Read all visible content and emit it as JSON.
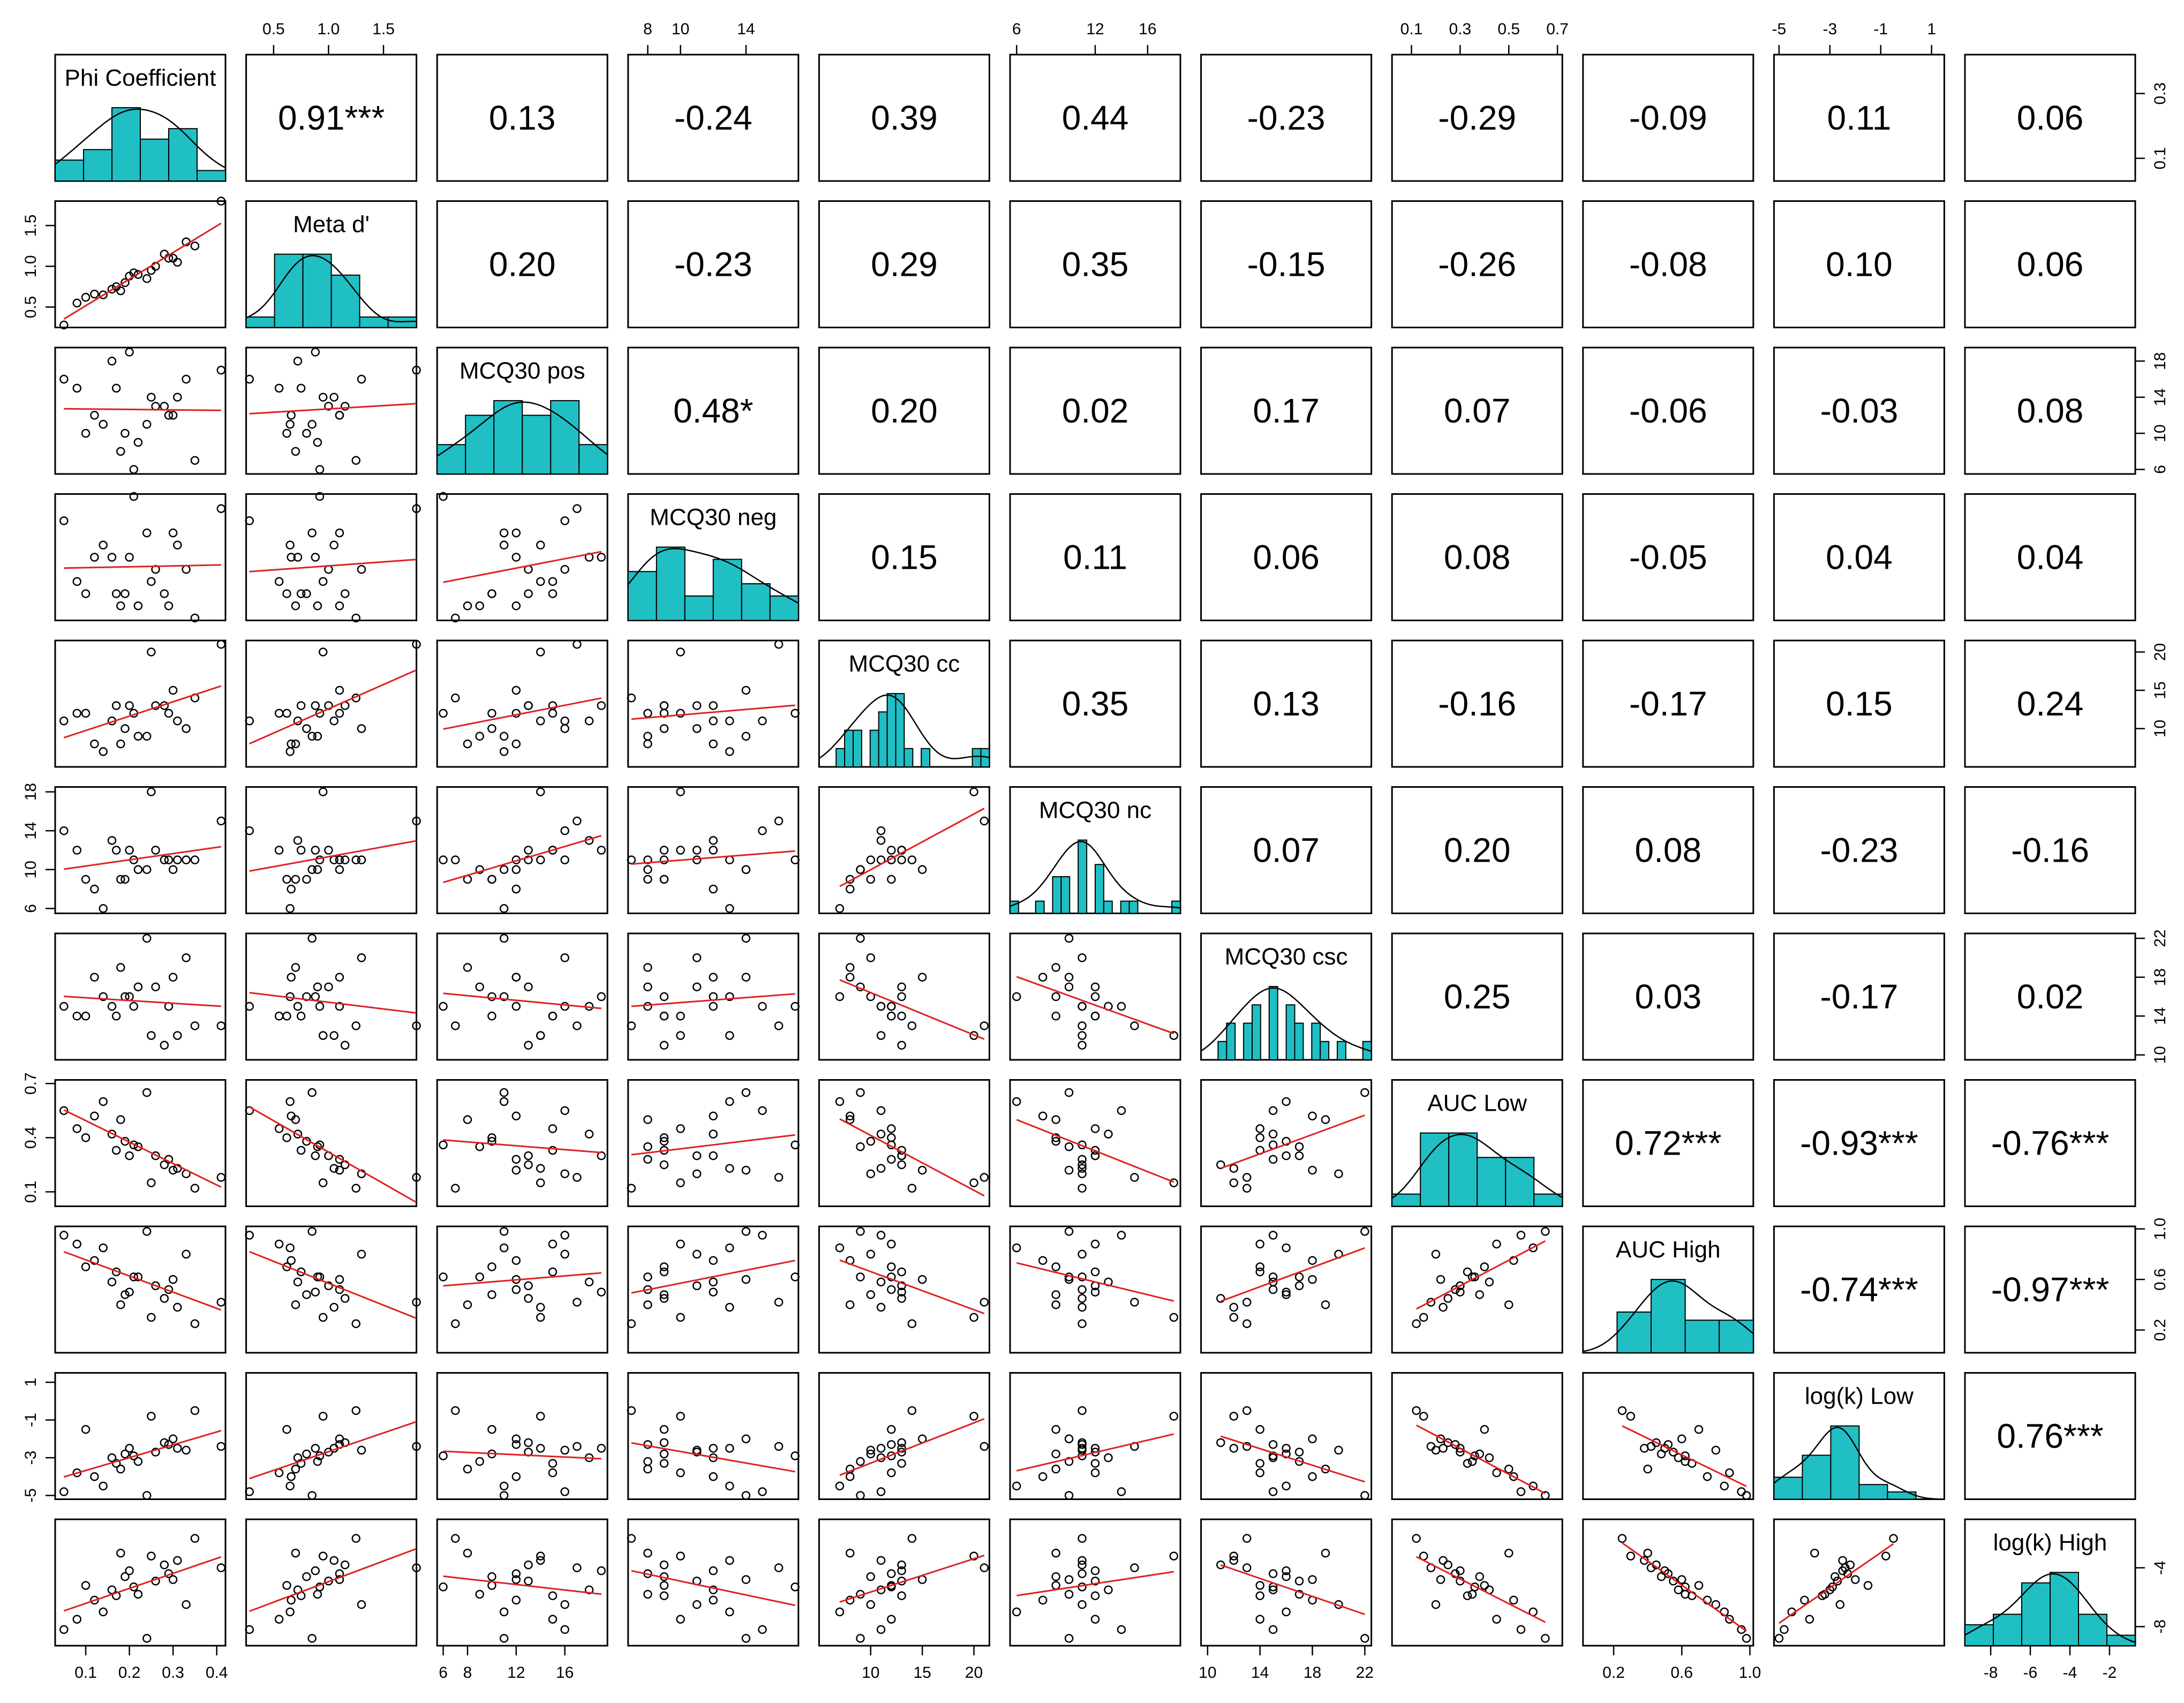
{
  "chart_data": {
    "type": "scatter-matrix",
    "variables": [
      "Phi Coefficient",
      "Meta d'",
      "MCQ30 pos",
      "MCQ30 neg",
      "MCQ30 cc",
      "MCQ30 nc",
      "MCQ30 csc",
      "AUC Low",
      "AUC High",
      "log(k) Low",
      "log(k) High"
    ],
    "ranges": [
      [
        0.03,
        0.42
      ],
      [
        0.25,
        1.8
      ],
      [
        5.5,
        19.5
      ],
      [
        6.8,
        17.2
      ],
      [
        5,
        21.5
      ],
      [
        5.5,
        18.5
      ],
      [
        9.5,
        22.5
      ],
      [
        0.02,
        0.72
      ],
      [
        0.02,
        1.02
      ],
      [
        -5.2,
        1.5
      ],
      [
        -9.3,
        -0.7
      ]
    ],
    "tick_values": [
      [
        0.1,
        0.2,
        0.3,
        0.4
      ],
      [
        0.5,
        1.0,
        1.5
      ],
      [
        6,
        8,
        12,
        16
      ],
      [
        8,
        10,
        14
      ],
      [
        10,
        15,
        20
      ],
      [
        6,
        12,
        16
      ],
      [
        10,
        14,
        18,
        22
      ],
      [
        0.1,
        0.3,
        0.5,
        0.7
      ],
      [
        0.2,
        0.6,
        1.0
      ],
      [
        -5,
        -3,
        -1,
        1
      ],
      [
        -8,
        -6,
        -4,
        -2
      ]
    ],
    "tick_text": [
      [
        "0.1",
        "0.2",
        "0.3",
        "0.4"
      ],
      [
        "0.5",
        "1.0",
        "1.5"
      ],
      [
        "6",
        "8",
        "12",
        "16"
      ],
      [
        "8",
        "10",
        "14"
      ],
      [
        "10",
        "15",
        "20"
      ],
      [
        "6",
        "12",
        "16"
      ],
      [
        "10",
        "14",
        "18",
        "22"
      ],
      [
        "0.1",
        "0.3",
        "0.5",
        "0.7"
      ],
      [
        "0.2",
        "0.6",
        "1.0"
      ],
      [
        "-5",
        "-3",
        "-1",
        "1"
      ],
      [
        "-8",
        "-6",
        "-4",
        "-2"
      ]
    ],
    "left_axis_values": {
      "1": [
        0.5,
        1.0,
        1.5
      ],
      "5": [
        6,
        10,
        14,
        18
      ],
      "7": [
        0.1,
        0.4,
        0.7
      ],
      "9": [
        -5,
        -3,
        -1,
        1
      ]
    },
    "left_axis_text": {
      "1": [
        "0.5",
        "1.0",
        "1.5"
      ],
      "5": [
        "6",
        "10",
        "14",
        "18"
      ],
      "7": [
        "0.1",
        "0.4",
        "0.7"
      ],
      "9": [
        "-5",
        "-3",
        "-1",
        "1"
      ]
    },
    "right_axis_values": {
      "0": [
        0.1,
        0.3
      ],
      "2": [
        6,
        10,
        14,
        18
      ],
      "4": [
        10,
        15,
        20
      ],
      "6": [
        10,
        14,
        18,
        22
      ],
      "8": [
        0.2,
        0.6,
        1.0
      ],
      "10": [
        -8,
        -4
      ]
    },
    "right_axis_text": {
      "0": [
        "0.1",
        "0.3"
      ],
      "2": [
        "6",
        "10",
        "14",
        "18"
      ],
      "4": [
        "10",
        "15",
        "20"
      ],
      "6": [
        "10",
        "14",
        "18",
        "22"
      ],
      "8": [
        "0.2",
        "0.6",
        "1.0"
      ],
      "10": [
        "-8",
        "-4"
      ]
    },
    "correlations": [
      [
        "",
        "0.91***",
        "0.13",
        "-0.24",
        "0.39",
        "0.44",
        "-0.23",
        "-0.29",
        "-0.09",
        "0.11",
        "0.06"
      ],
      [
        "",
        "",
        "0.20",
        "-0.23",
        "0.29",
        "0.35",
        "-0.15",
        "-0.26",
        "-0.08",
        "0.10",
        "0.06"
      ],
      [
        "",
        "",
        "",
        "0.48*",
        "0.20",
        "0.02",
        "0.17",
        "0.07",
        "-0.06",
        "-0.03",
        "0.08"
      ],
      [
        "",
        "",
        "",
        "",
        "0.15",
        "0.11",
        "0.06",
        "0.08",
        "-0.05",
        "0.04",
        "0.04"
      ],
      [
        "",
        "",
        "",
        "",
        "",
        "0.35",
        "0.13",
        "-0.16",
        "-0.17",
        "0.15",
        "0.24"
      ],
      [
        "",
        "",
        "",
        "",
        "",
        "",
        "0.07",
        "0.20",
        "0.08",
        "-0.23",
        "-0.16"
      ],
      [
        "",
        "",
        "",
        "",
        "",
        "",
        "",
        "0.25",
        "0.03",
        "-0.17",
        "0.02"
      ],
      [
        "",
        "",
        "",
        "",
        "",
        "",
        "",
        "",
        "0.72***",
        "-0.93***",
        "-0.76***"
      ],
      [
        "",
        "",
        "",
        "",
        "",
        "",
        "",
        "",
        "",
        "-0.74***",
        "-0.97***"
      ],
      [
        "",
        "",
        "",
        "",
        "",
        "",
        "",
        "",
        "",
        "",
        "0.76***"
      ],
      [
        "",
        "",
        "",
        "",
        "",
        "",
        "",
        "",
        "",
        "",
        ""
      ]
    ],
    "observations": [
      [
        0.2,
        0.88,
        19,
        12,
        13,
        12,
        16,
        0.3,
        0.5,
        -2.5,
        -4.2
      ],
      [
        0.3,
        1.1,
        12,
        14,
        15,
        10,
        18,
        0.22,
        0.6,
        -2.0,
        -4.8
      ],
      [
        0.18,
        0.7,
        8,
        8,
        8,
        9,
        19,
        0.5,
        0.4,
        -3.6,
        -3.0
      ],
      [
        0.1,
        0.62,
        10,
        9,
        12,
        9,
        14,
        0.4,
        0.7,
        -1.5,
        -5.2
      ],
      [
        0.25,
        0.95,
        14,
        10,
        20,
        18,
        12,
        0.15,
        0.3,
        -0.8,
        -3.2
      ],
      [
        0.33,
        1.3,
        16,
        11,
        10,
        11,
        20,
        0.2,
        0.8,
        -2.6,
        -6.5
      ],
      [
        0.05,
        0.28,
        16,
        15,
        11,
        14,
        15,
        0.55,
        0.95,
        -4.8,
        -8.2
      ],
      [
        0.41,
        1.8,
        17,
        16,
        21,
        15,
        13,
        0.18,
        0.42,
        -2.4,
        -4.0
      ],
      [
        0.14,
        0.65,
        11,
        13,
        7,
        6,
        16,
        0.6,
        0.85,
        -4.5,
        -7.0
      ],
      [
        0.28,
        1.15,
        13,
        9,
        13,
        11,
        11,
        0.25,
        0.45,
        -2.2,
        -3.8
      ],
      [
        0.22,
        0.9,
        9,
        8,
        9,
        10,
        17,
        0.35,
        0.62,
        -3.2,
        -5.8
      ],
      [
        0.16,
        0.72,
        18,
        12,
        11,
        13,
        15,
        0.42,
        0.58,
        -3.0,
        -5.5
      ],
      [
        0.08,
        0.55,
        15,
        10,
        12,
        12,
        14,
        0.45,
        0.88,
        -3.8,
        -7.5
      ],
      [
        0.35,
        1.25,
        7,
        7,
        14,
        11,
        13,
        0.12,
        0.25,
        -0.5,
        -2.0
      ],
      [
        0.26,
        1.0,
        13,
        11,
        13,
        12,
        17,
        0.3,
        0.55,
        -2.7,
        -4.9
      ],
      [
        0.12,
        0.66,
        12,
        12,
        8,
        8,
        18,
        0.52,
        0.75,
        -4.0,
        -6.2
      ],
      [
        0.31,
        1.05,
        14,
        13,
        11,
        11,
        12,
        0.23,
        0.38,
        -2.5,
        -3.5
      ],
      [
        0.19,
        0.8,
        10,
        9,
        10,
        9,
        16,
        0.38,
        0.48,
        -2.8,
        -4.6
      ],
      [
        0.24,
        0.85,
        11,
        14,
        9,
        10,
        22,
        0.65,
        0.98,
        -5.0,
        -8.8
      ],
      [
        0.29,
        1.1,
        12,
        8,
        12,
        11,
        15,
        0.28,
        0.52,
        -2.3,
        -4.4
      ],
      [
        0.17,
        0.75,
        15,
        9,
        13,
        12,
        14,
        0.33,
        0.66,
        -3.3,
        -5.9
      ],
      [
        0.21,
        0.92,
        6,
        17,
        12,
        11,
        15,
        0.36,
        0.62,
        -2.9,
        -5.3
      ]
    ],
    "histogram_bins": [
      6,
      6,
      6,
      6,
      20,
      20,
      20,
      6,
      5,
      6,
      6
    ],
    "grid": false
  }
}
